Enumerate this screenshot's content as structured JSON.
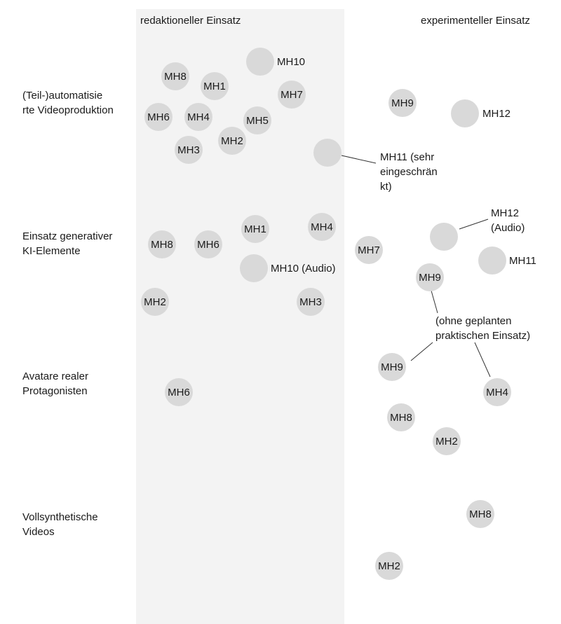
{
  "columns": {
    "editorial": "redaktioneller Einsatz",
    "experimental": "experimenteller Einsatz"
  },
  "rows": {
    "automated": "(Teil-)automatisie\nrte Videoproduktion",
    "generative": "Einsatz generativer\nKI-Elemente",
    "avatars": "Avatare realer\nProtagonisten",
    "synthetic": "Vollsynthetische\nVideos"
  },
  "nodes": {
    "r1_mh8": "MH8",
    "r1_mh1": "MH1",
    "r1_mh7": "MH7",
    "r1_mh6": "MH6",
    "r1_mh4": "MH4",
    "r1_mh5": "MH5",
    "r1_mh3": "MH3",
    "r1_mh2": "MH2",
    "r1_mh9": "MH9",
    "r2_mh1": "MH1",
    "r2_mh4": "MH4",
    "r2_mh8": "MH8",
    "r2_mh6": "MH6",
    "r2_mh7": "MH7",
    "r2_mh2": "MH2",
    "r2_mh3": "MH3",
    "r2_mh9": "MH9",
    "r3_mh6": "MH6",
    "r3_mh9": "MH9",
    "r3_mh4": "MH4",
    "r3_mh8": "MH8",
    "r3_mh2": "MH2",
    "r4_mh8": "MH8",
    "r4_mh2": "MH2"
  },
  "labels": {
    "r1_mh10": "MH10",
    "r1_mh12": "MH12",
    "r1_mh11": "MH11 (sehr\neingeschrän\nkt)",
    "r2_mh12": "MH12\n(Audio)",
    "r2_mh10": "MH10 (Audio)",
    "r2_mh11": "MH11",
    "r2_note": "(ohne geplanten\npraktischen Einsatz)"
  }
}
